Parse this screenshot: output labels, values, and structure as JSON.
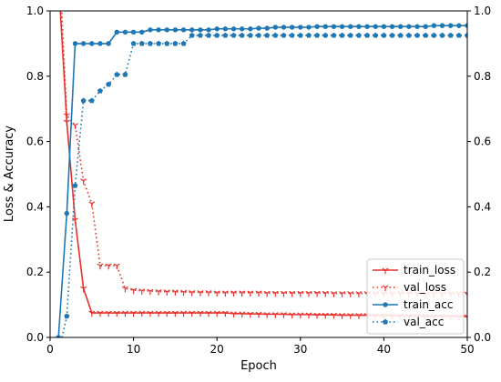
{
  "chart_data": {
    "type": "line",
    "xlabel": "Epoch",
    "ylabel": "Loss & Accuracy",
    "xlim": [
      0,
      50
    ],
    "ylim": [
      0,
      1.0
    ],
    "xticks": [
      0,
      10,
      20,
      30,
      40,
      50
    ],
    "yticks": [
      0.0,
      0.2,
      0.4,
      0.6,
      0.8,
      1.0
    ],
    "ytick_labels": [
      "0.0",
      "0.2",
      "0.4",
      "0.6",
      "0.8",
      "1.0"
    ],
    "right_axis_mirror": true,
    "grid": false,
    "legend_position": "lower-right",
    "series": [
      {
        "name": "train_loss",
        "color": "#e8312a",
        "linestyle": "solid",
        "marker": "tri_down",
        "x": [
          1,
          2,
          3,
          4,
          5,
          6,
          7,
          8,
          9,
          10,
          11,
          12,
          13,
          14,
          15,
          16,
          17,
          18,
          19,
          20,
          21,
          22,
          23,
          24,
          25,
          26,
          27,
          28,
          29,
          30,
          31,
          32,
          33,
          34,
          35,
          36,
          37,
          38,
          39,
          40,
          41,
          42,
          43,
          44,
          45,
          46,
          47,
          48,
          49,
          50
        ],
        "y": [
          1.1,
          0.66,
          0.36,
          0.15,
          0.075,
          0.075,
          0.075,
          0.075,
          0.075,
          0.075,
          0.075,
          0.075,
          0.075,
          0.075,
          0.075,
          0.075,
          0.075,
          0.075,
          0.075,
          0.075,
          0.075,
          0.073,
          0.073,
          0.072,
          0.072,
          0.071,
          0.071,
          0.071,
          0.07,
          0.07,
          0.07,
          0.069,
          0.069,
          0.069,
          0.068,
          0.068,
          0.068,
          0.068,
          0.067,
          0.067,
          0.067,
          0.066,
          0.066,
          0.066,
          0.066,
          0.065,
          0.065,
          0.065,
          0.064,
          0.064
        ]
      },
      {
        "name": "val_loss",
        "color": "#e8312a",
        "linestyle": "dotted",
        "marker": "tri_down",
        "x": [
          1,
          2,
          3,
          4,
          5,
          6,
          7,
          8,
          9,
          10,
          11,
          12,
          13,
          14,
          15,
          16,
          17,
          18,
          19,
          20,
          21,
          22,
          23,
          24,
          25,
          26,
          27,
          28,
          29,
          30,
          31,
          32,
          33,
          34,
          35,
          36,
          37,
          38,
          39,
          40,
          41,
          42,
          43,
          44,
          45,
          46,
          47,
          48,
          49,
          50
        ],
        "y": [
          1.2,
          0.68,
          0.65,
          0.48,
          0.41,
          0.22,
          0.22,
          0.22,
          0.15,
          0.145,
          0.143,
          0.142,
          0.141,
          0.14,
          0.14,
          0.139,
          0.138,
          0.138,
          0.138,
          0.137,
          0.137,
          0.137,
          0.137,
          0.137,
          0.137,
          0.136,
          0.136,
          0.136,
          0.136,
          0.136,
          0.136,
          0.136,
          0.136,
          0.135,
          0.135,
          0.135,
          0.135,
          0.135,
          0.135,
          0.135,
          0.135,
          0.135,
          0.135,
          0.135,
          0.134,
          0.134,
          0.134,
          0.134,
          0.134,
          0.134
        ]
      },
      {
        "name": "train_acc",
        "color": "#1f77b4",
        "linestyle": "solid",
        "marker": "circle",
        "x": [
          1,
          2,
          3,
          4,
          5,
          6,
          7,
          8,
          9,
          10,
          11,
          12,
          13,
          14,
          15,
          16,
          17,
          18,
          19,
          20,
          21,
          22,
          23,
          24,
          25,
          26,
          27,
          28,
          29,
          30,
          31,
          32,
          33,
          34,
          35,
          36,
          37,
          38,
          39,
          40,
          41,
          42,
          43,
          44,
          45,
          46,
          47,
          48,
          49,
          50
        ],
        "y": [
          0.0,
          0.38,
          0.9,
          0.9,
          0.9,
          0.9,
          0.9,
          0.935,
          0.935,
          0.935,
          0.935,
          0.942,
          0.942,
          0.942,
          0.942,
          0.942,
          0.942,
          0.942,
          0.942,
          0.945,
          0.945,
          0.945,
          0.945,
          0.945,
          0.947,
          0.947,
          0.95,
          0.95,
          0.95,
          0.95,
          0.95,
          0.952,
          0.952,
          0.952,
          0.952,
          0.952,
          0.952,
          0.952,
          0.952,
          0.952,
          0.952,
          0.952,
          0.952,
          0.952,
          0.952,
          0.955,
          0.955,
          0.955,
          0.955,
          0.955
        ]
      },
      {
        "name": "val_acc",
        "color": "#1f77b4",
        "linestyle": "dotted",
        "marker": "pentagon",
        "x": [
          1,
          2,
          3,
          4,
          5,
          6,
          7,
          8,
          9,
          10,
          11,
          12,
          13,
          14,
          15,
          16,
          17,
          18,
          19,
          20,
          21,
          22,
          23,
          24,
          25,
          26,
          27,
          28,
          29,
          30,
          31,
          32,
          33,
          34,
          35,
          36,
          37,
          38,
          39,
          40,
          41,
          42,
          43,
          44,
          45,
          46,
          47,
          48,
          49,
          50
        ],
        "y": [
          -0.05,
          0.065,
          0.465,
          0.725,
          0.725,
          0.755,
          0.775,
          0.805,
          0.805,
          0.9,
          0.9,
          0.9,
          0.9,
          0.9,
          0.9,
          0.9,
          0.925,
          0.925,
          0.925,
          0.925,
          0.925,
          0.925,
          0.925,
          0.925,
          0.925,
          0.925,
          0.925,
          0.925,
          0.925,
          0.925,
          0.925,
          0.925,
          0.925,
          0.925,
          0.925,
          0.925,
          0.925,
          0.925,
          0.925,
          0.925,
          0.925,
          0.925,
          0.925,
          0.925,
          0.925,
          0.925,
          0.925,
          0.925,
          0.925,
          0.925
        ]
      }
    ]
  }
}
